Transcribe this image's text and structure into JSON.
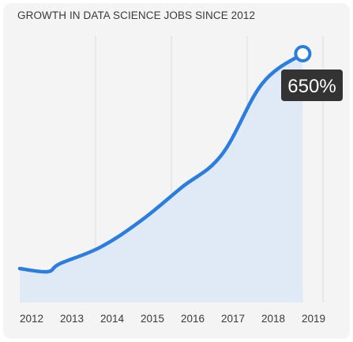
{
  "chart_data": {
    "type": "area",
    "title": "GROWTH IN DATA SCIENCE JOBS SINCE 2012",
    "xlabel": "",
    "ylabel": "",
    "x": [
      "2012",
      "2013",
      "2014",
      "2015",
      "2016",
      "2017",
      "2018",
      "2019"
    ],
    "series": [
      {
        "values": [
          0,
          15,
          65,
          145,
          245,
          345,
          560,
          650
        ]
      }
    ],
    "ylim": [
      -30,
      700
    ],
    "grid": "vertical",
    "legend": "none",
    "annotations": [
      {
        "x": "2019",
        "value": 650,
        "text": "650%"
      }
    ],
    "colors": {
      "line": "#2b7de0",
      "area": "#e0e9f6",
      "grid": "#dcdcdc",
      "callout_bg": "#333333",
      "callout_text": "#ffffff"
    }
  }
}
